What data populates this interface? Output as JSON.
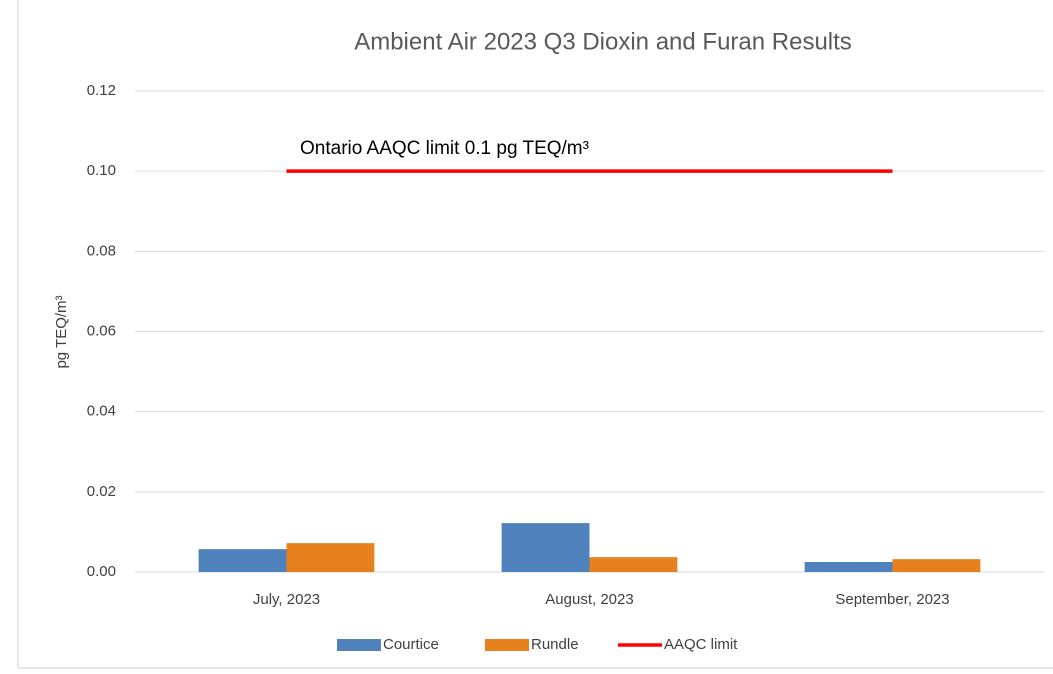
{
  "chart_data": {
    "type": "bar",
    "title": "Ambient Air 2023 Q3 Dioxin and Furan Results",
    "y_label": "pg TEQ/m³",
    "annotation": "Ontario AAQC limit 0.1 pg TEQ/m³",
    "categories": [
      "July, 2023",
      "August, 2023",
      "September, 2023"
    ],
    "series": [
      {
        "name": "Courtice",
        "color": "#4f81bd",
        "values": [
          0.0057,
          0.0122,
          0.0025
        ]
      },
      {
        "name": "Rundle",
        "color": "#e8801e",
        "values": [
          0.0072,
          0.0037,
          0.0032
        ]
      },
      {
        "name": "AAQC limit",
        "color": "#ff0000",
        "type": "line",
        "values": [
          0.1,
          0.1,
          0.1
        ]
      }
    ],
    "ylim": [
      0,
      0.12
    ],
    "yticks": [
      {
        "value": 0,
        "label": "0.00"
      },
      0.02,
      0.04,
      0.06,
      0.08,
      {
        "value": 0.1,
        "label": "0.10"
      },
      0.12
    ],
    "grid": true,
    "legend": "bottom"
  }
}
